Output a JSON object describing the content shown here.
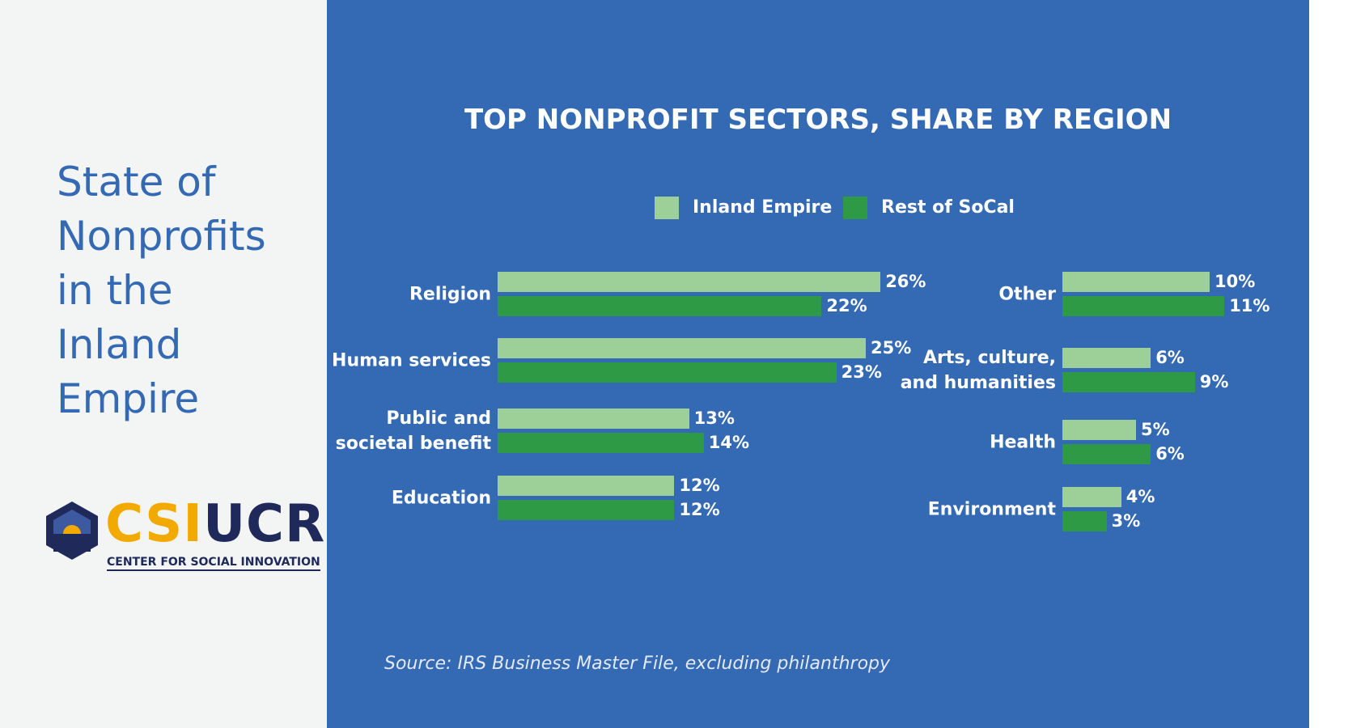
{
  "sidebar": {
    "title": "State of\nNonprofits\nin the\nInland\nEmpire",
    "logo": {
      "part1": "CSI",
      "part2": "UCR",
      "tagline": "CENTER FOR SOCIAL INNOVATION"
    }
  },
  "chart_data": {
    "type": "bar",
    "orientation": "horizontal",
    "title": "TOP NONPROFIT SECTORS, SHARE BY REGION",
    "categories": [
      "Religion",
      "Human services",
      "Public and\nsocietal benefit",
      "Education",
      "Other",
      "Arts, culture,\nand humanities",
      "Health",
      "Environment"
    ],
    "series": [
      {
        "name": "Inland Empire",
        "color": "#9dcf98",
        "values": [
          26,
          25,
          13,
          12,
          10,
          6,
          5,
          4
        ],
        "value_labels": [
          "26%",
          "25%",
          "13%",
          "12%",
          "10%",
          "6%",
          "5%",
          "4%"
        ]
      },
      {
        "name": "Rest of SoCal",
        "color": "#2f9a45",
        "values": [
          22,
          23,
          14,
          12,
          11,
          9,
          6,
          3
        ],
        "value_labels": [
          "22%",
          "23%",
          "14%",
          "12%",
          "11%",
          "9%",
          "6%",
          "3%"
        ]
      }
    ],
    "legend": "top",
    "source": "Source: IRS Business Master File, excluding philanthropy"
  }
}
